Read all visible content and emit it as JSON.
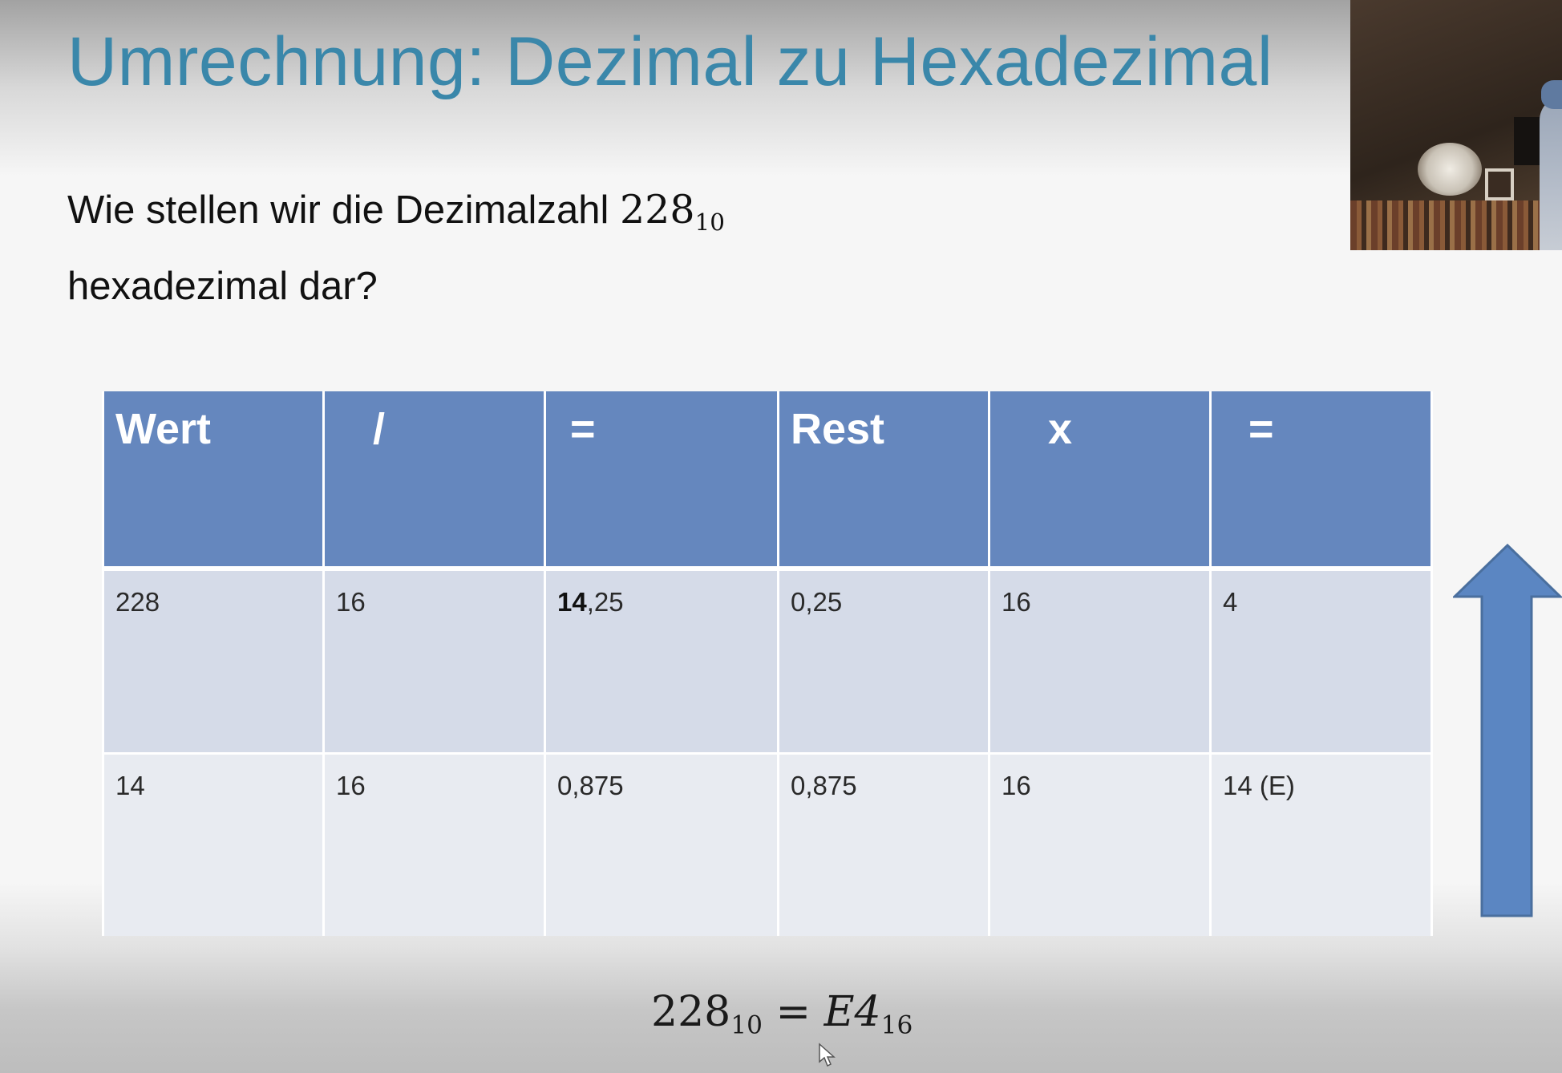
{
  "slide": {
    "title": "Umrechnung: Dezimal zu Hexadezimal",
    "question_line1": "Wie stellen wir die Dezimalzahl",
    "question_number": "228",
    "question_base": "10",
    "question_line2": "hexadezimal dar?"
  },
  "table": {
    "headers": [
      "Wert",
      "/",
      "=",
      "Rest",
      "x",
      "="
    ],
    "rows": [
      [
        "228",
        "16",
        "14,25",
        "0,25",
        "16",
        "4"
      ],
      [
        "14",
        "16",
        "0,875",
        "0,875",
        "16",
        "14 (E)"
      ]
    ],
    "row1_col3_bold": "14",
    "row1_col3_rest": ",25"
  },
  "result": {
    "lhs_number": "228",
    "lhs_base": "10",
    "equals": "=",
    "rhs_number": "E4",
    "rhs_base": "16"
  },
  "colors": {
    "title": "#3a87aa",
    "header_bg": "#6587be",
    "row1_bg": "#d5dbe8",
    "row2_bg": "#e8ebf1",
    "arrow": "#5b86c2"
  },
  "icons": {
    "arrow": "up-arrow-icon",
    "cursor": "mouse-pointer-icon"
  }
}
